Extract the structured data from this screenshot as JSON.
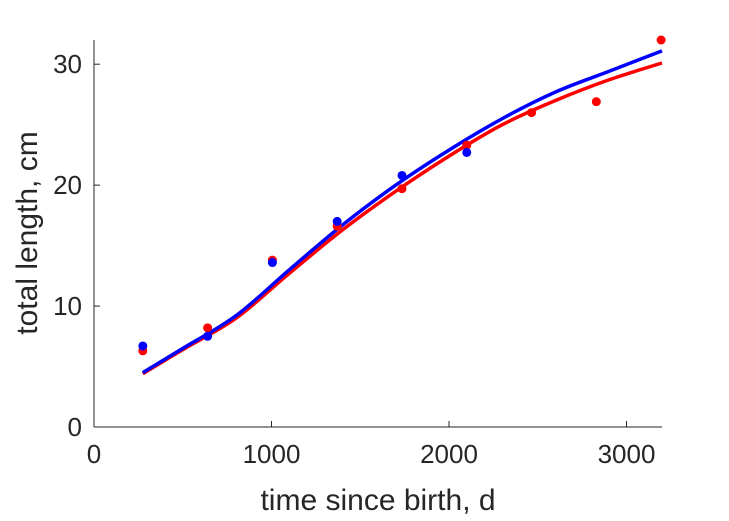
{
  "chart_data": {
    "type": "scatter",
    "xlabel": "time since birth, d",
    "ylabel": "total length, cm",
    "xlim": [
      0,
      3200
    ],
    "ylim": [
      0,
      32
    ],
    "xticks": [
      "0",
      "1000",
      "2000",
      "3000"
    ],
    "yticks": [
      "0",
      "10",
      "20",
      "30"
    ],
    "grid": false,
    "legend": "none",
    "series": [
      {
        "color": "#ff0000",
        "points": {
          "x": [
            275,
            640,
            1005,
            1370,
            1735,
            2100,
            2465,
            2830,
            3195
          ],
          "y": [
            6.3,
            8.2,
            13.8,
            16.6,
            19.7,
            23.3,
            26.0,
            26.9,
            32.0
          ]
        },
        "fit": {
          "x": [
            275,
            500,
            800,
            1100,
            1400,
            1700,
            2000,
            2300,
            2600,
            2900,
            3200
          ],
          "y": [
            4.4,
            6.4,
            9.0,
            12.7,
            16.3,
            19.5,
            22.4,
            25.0,
            27.0,
            28.7,
            30.1
          ]
        }
      },
      {
        "color": "#0000ff",
        "points": {
          "x": [
            275,
            640,
            1005,
            1370,
            1735,
            2100
          ],
          "y": [
            6.7,
            7.5,
            13.6,
            17.0,
            20.8,
            22.7
          ]
        },
        "fit": {
          "x": [
            275,
            500,
            800,
            1100,
            1400,
            1700,
            2000,
            2300,
            2600,
            2900,
            3200
          ],
          "y": [
            4.5,
            6.5,
            9.2,
            13.0,
            16.7,
            20.0,
            22.9,
            25.5,
            27.7,
            29.4,
            31.1
          ]
        }
      }
    ]
  }
}
